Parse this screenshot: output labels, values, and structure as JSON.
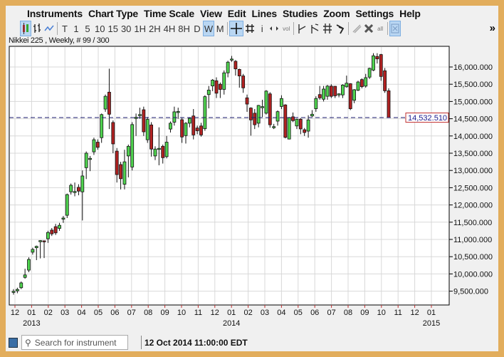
{
  "menu": [
    "Instruments",
    "Chart Type",
    "Time Scale",
    "View",
    "Edit",
    "Lines",
    "Studies",
    "Zoom",
    "Settings",
    "Help"
  ],
  "toolbar": {
    "timeframes": [
      "T",
      "1",
      "5",
      "10",
      "15",
      "30",
      "1H",
      "2H",
      "4H",
      "8H",
      "D",
      "W",
      "M"
    ],
    "active_timeframe": "W",
    "info_label": "i",
    "vol_label": "vol",
    "all_label": "all",
    "more_label": "»"
  },
  "chart_info": "Nikkei 225 , Weekly, # 99 / 300",
  "current_price_label": "14,532.510",
  "colors": {
    "up": "#4fd34f",
    "down": "#b22222",
    "grid": "#d8d8d8",
    "dash": "#1a1a6e",
    "frame": "#e2ad5c"
  },
  "status": {
    "search_placeholder": "Search for instrument",
    "datetime": "12 Oct 2014 11:00:00 EDT"
  },
  "chart_data": {
    "type": "candlestick",
    "title": "Nikkei 225 , Weekly",
    "ylim": [
      9300,
      16650
    ],
    "y_ticks": [
      9500,
      10000,
      10500,
      11000,
      11500,
      12000,
      12500,
      13000,
      13500,
      14000,
      14500,
      15000,
      15500,
      16000
    ],
    "y_tick_labels": [
      "9,500.000",
      "10,000.000",
      "10,500.000",
      "11,000.000",
      "11,500.000",
      "12,000.000",
      "12,500.000",
      "13,000.000",
      "13,500.000",
      "14,000.000",
      "14,500.000",
      "15,000.000",
      "15,500.000",
      "16,000.000"
    ],
    "x_tick_labels": [
      "12",
      "01",
      "02",
      "03",
      "04",
      "05",
      "06",
      "07",
      "08",
      "09",
      "10",
      "11",
      "12",
      "01",
      "02",
      "03",
      "04",
      "05",
      "06",
      "07",
      "08",
      "09",
      "10",
      "11",
      "12",
      "01"
    ],
    "year_labels": [
      {
        "label": "2013",
        "tick": 1
      },
      {
        "label": "2014",
        "tick": 13
      },
      {
        "label": "2015",
        "tick": 25
      }
    ],
    "current_price": 14532.51,
    "grid": true,
    "ohlc": [
      [
        9480,
        9560,
        9400,
        9495
      ],
      [
        9510,
        9600,
        9440,
        9550
      ],
      [
        9600,
        9780,
        9560,
        9740
      ],
      [
        9900,
        10150,
        9860,
        9970
      ],
      [
        10110,
        10480,
        10050,
        10420
      ],
      [
        10630,
        10760,
        10560,
        10710
      ],
      [
        10760,
        10820,
        10400,
        10800
      ],
      [
        10960,
        10980,
        10450,
        10965
      ],
      [
        10960,
        10970,
        10460,
        10955
      ],
      [
        11020,
        11250,
        10900,
        11200
      ],
      [
        11270,
        11330,
        11100,
        11160
      ],
      [
        11370,
        11450,
        11130,
        11190
      ],
      [
        11320,
        11480,
        11250,
        11410
      ],
      [
        11590,
        11680,
        11480,
        11620
      ],
      [
        11700,
        12330,
        11620,
        12300
      ],
      [
        12380,
        12620,
        12300,
        12570
      ],
      [
        12380,
        12650,
        12250,
        12390
      ],
      [
        12510,
        12600,
        12280,
        12400
      ],
      [
        12380,
        13000,
        11550,
        12840
      ],
      [
        13080,
        13550,
        12750,
        13500
      ],
      [
        13340,
        13420,
        12980,
        13350
      ],
      [
        13540,
        13950,
        13450,
        13890
      ],
      [
        13820,
        13900,
        13600,
        13670
      ],
      [
        13950,
        14650,
        13800,
        14620
      ],
      [
        14780,
        15200,
        14700,
        15150
      ],
      [
        15270,
        15950,
        14200,
        14630
      ],
      [
        14390,
        14450,
        13500,
        13770
      ],
      [
        13560,
        13650,
        12650,
        12880
      ],
      [
        13170,
        13250,
        12450,
        12760
      ],
      [
        12600,
        13600,
        12450,
        13250
      ],
      [
        13420,
        13750,
        12800,
        13700
      ],
      [
        13100,
        14400,
        13000,
        14330
      ],
      [
        14530,
        14650,
        14000,
        14540
      ],
      [
        14600,
        14820,
        14500,
        14620
      ],
      [
        14760,
        14850,
        14000,
        14120
      ],
      [
        13890,
        14550,
        13800,
        14480
      ],
      [
        14320,
        14400,
        13400,
        13620
      ],
      [
        13420,
        13700,
        13300,
        13620
      ],
      [
        13630,
        14250,
        13150,
        13640
      ],
      [
        13700,
        13750,
        13200,
        13370
      ],
      [
        13400,
        14000,
        13350,
        13820
      ],
      [
        14200,
        14420,
        14100,
        14370
      ],
      [
        14400,
        14850,
        14300,
        14700
      ],
      [
        14700,
        14820,
        14500,
        14710
      ],
      [
        14470,
        14520,
        13800,
        13970
      ],
      [
        14010,
        14400,
        13780,
        14370
      ],
      [
        14370,
        14530,
        14250,
        14510
      ],
      [
        14580,
        14780,
        13900,
        14030
      ],
      [
        14230,
        14300,
        14050,
        14150
      ],
      [
        14290,
        14380,
        13980,
        14030
      ],
      [
        14210,
        15180,
        14150,
        15140
      ],
      [
        15200,
        15450,
        14800,
        15330
      ],
      [
        15450,
        15650,
        15300,
        15620
      ],
      [
        15600,
        15700,
        15100,
        15240
      ],
      [
        15500,
        15550,
        15100,
        15350
      ],
      [
        15350,
        15900,
        15200,
        15830
      ],
      [
        15830,
        16180,
        15700,
        16140
      ],
      [
        16220,
        16320,
        16150,
        16230
      ],
      [
        16165,
        16200,
        15750,
        15945
      ],
      [
        15930,
        15950,
        15400,
        15740
      ],
      [
        15740,
        15800,
        15250,
        15395
      ],
      [
        15105,
        15200,
        14700,
        14925
      ],
      [
        14810,
        14830,
        14010,
        14465
      ],
      [
        14660,
        14780,
        14200,
        14325
      ],
      [
        14370,
        14900,
        14250,
        14885
      ],
      [
        14840,
        15050,
        14550,
        14850
      ],
      [
        14660,
        15330,
        14620,
        15300
      ],
      [
        15220,
        15270,
        14240,
        14325
      ],
      [
        14265,
        14350,
        14200,
        14270
      ],
      [
        14430,
        14740,
        14300,
        14705
      ],
      [
        14855,
        15180,
        14780,
        15085
      ],
      [
        14900,
        14920,
        13930,
        13960
      ],
      [
        13910,
        14550,
        13900,
        14530
      ],
      [
        14555,
        14680,
        14400,
        14445
      ],
      [
        14290,
        14500,
        14200,
        14485
      ],
      [
        14485,
        14520,
        14050,
        14205
      ],
      [
        14180,
        14230,
        14000,
        14100
      ],
      [
        14140,
        14600,
        13950,
        14465
      ],
      [
        14580,
        14750,
        14550,
        14630
      ],
      [
        14790,
        15150,
        14700,
        15085
      ],
      [
        15200,
        15450,
        15050,
        15105
      ],
      [
        15065,
        15450,
        15000,
        15360
      ],
      [
        15150,
        15480,
        15050,
        15445
      ],
      [
        15445,
        15500,
        15100,
        15150
      ],
      [
        15440,
        15450,
        15100,
        15165
      ],
      [
        15220,
        15240,
        15120,
        15220
      ],
      [
        15190,
        15500,
        15100,
        15475
      ],
      [
        15425,
        15750,
        15400,
        15530
      ],
      [
        15515,
        15530,
        14750,
        14790
      ],
      [
        15035,
        15360,
        14950,
        15340
      ],
      [
        15325,
        15600,
        15300,
        15565
      ],
      [
        15635,
        15670,
        15380,
        15430
      ],
      [
        15445,
        15800,
        15400,
        15690
      ],
      [
        15705,
        15980,
        15650,
        15960
      ],
      [
        15910,
        16400,
        15880,
        16325
      ],
      [
        16305,
        16400,
        16100,
        16235
      ],
      [
        16360,
        16380,
        15600,
        15725
      ],
      [
        15890,
        15970,
        15250,
        15310
      ],
      [
        15310,
        15380,
        14532.51,
        14532.51
      ]
    ]
  }
}
